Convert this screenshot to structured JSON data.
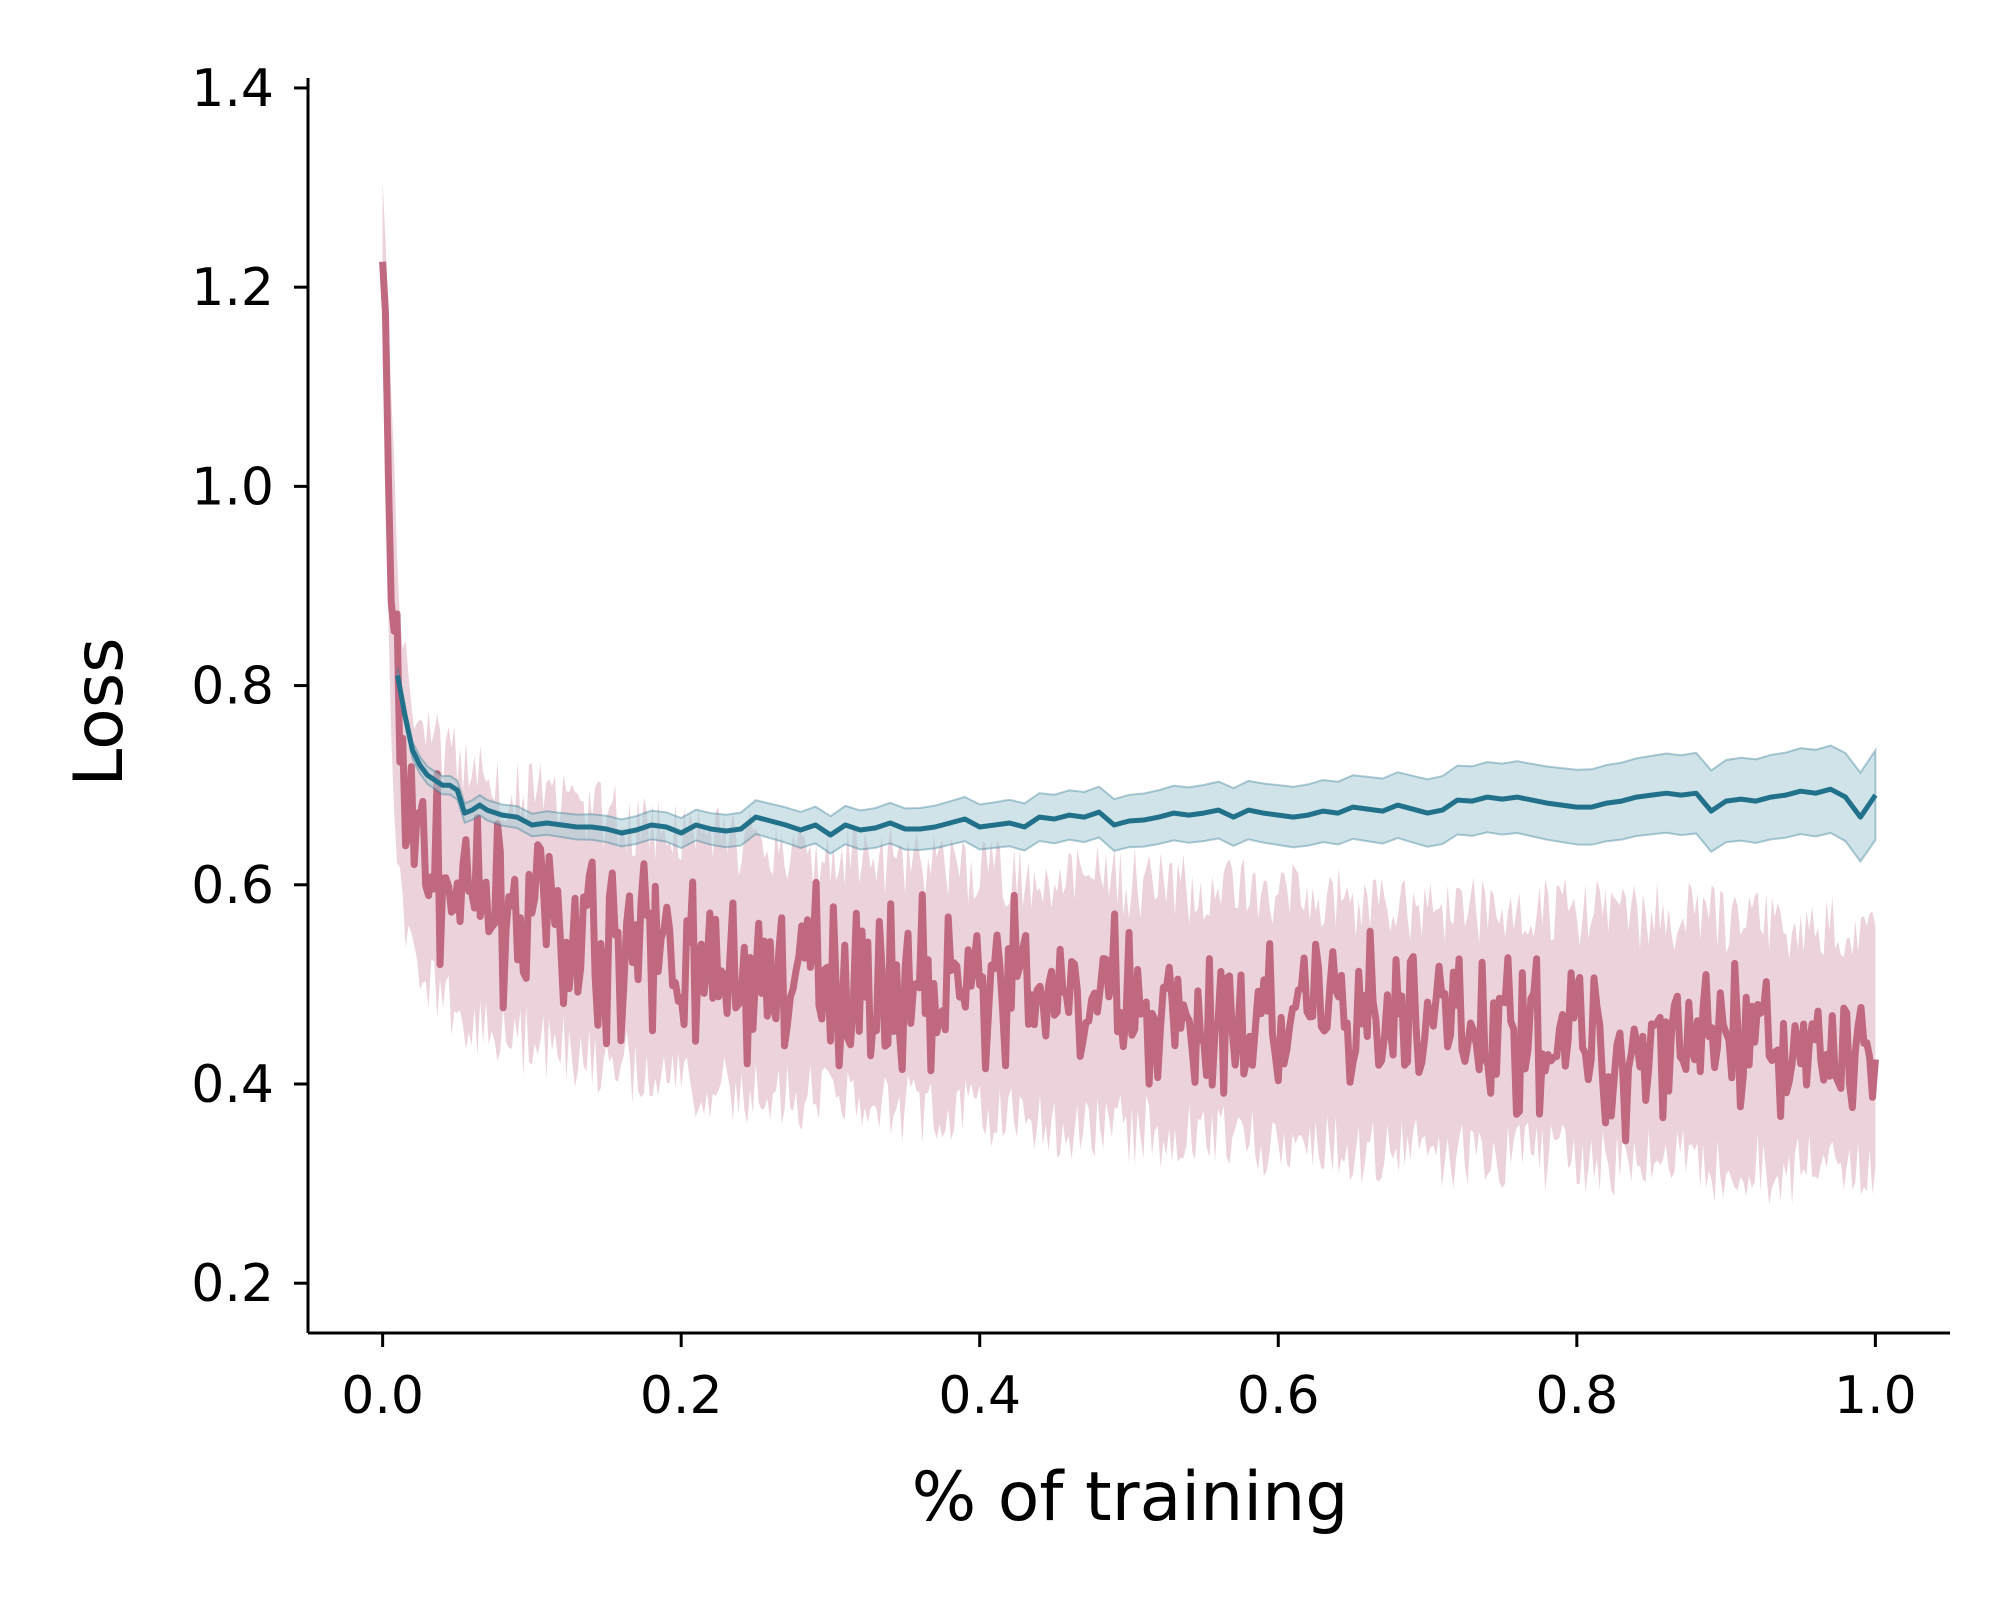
{
  "chart_data": {
    "type": "line",
    "title": "",
    "xlabel": "% of training",
    "ylabel": "Loss",
    "xlim": [
      -0.05,
      1.05
    ],
    "ylim": [
      0.15,
      1.41
    ],
    "x_ticks": [
      0.0,
      0.2,
      0.4,
      0.6,
      0.8,
      1.0
    ],
    "x_tick_labels": [
      "0.0",
      "0.2",
      "0.4",
      "0.6",
      "0.8",
      "1.0"
    ],
    "y_ticks": [
      0.2,
      0.4,
      0.6,
      0.8,
      1.0,
      1.2,
      1.4
    ],
    "y_tick_labels": [
      "0.2",
      "0.4",
      "0.6",
      "0.8",
      "1.0",
      "1.2",
      "1.4"
    ],
    "grid": false,
    "legend": "none",
    "colors": {
      "train": "#c0687f",
      "train_band": "#ecd3db",
      "val": "#22718a",
      "val_band": "#a8ccd6"
    },
    "series": [
      {
        "role": "train",
        "style": "noisy line with shaded min-max band",
        "x": [
          0.0,
          0.005,
          0.01,
          0.015,
          0.02,
          0.03,
          0.04,
          0.05,
          0.06,
          0.08,
          0.1,
          0.15,
          0.2,
          0.25,
          0.3,
          0.35,
          0.4,
          0.45,
          0.5,
          0.55,
          0.6,
          0.65,
          0.7,
          0.75,
          0.8,
          0.85,
          0.9,
          0.95,
          1.0
        ],
        "mean": [
          1.24,
          0.95,
          0.76,
          0.7,
          0.66,
          0.63,
          0.61,
          0.6,
          0.59,
          0.575,
          0.565,
          0.545,
          0.53,
          0.515,
          0.505,
          0.5,
          0.49,
          0.485,
          0.478,
          0.47,
          0.465,
          0.46,
          0.455,
          0.452,
          0.448,
          0.445,
          0.44,
          0.437,
          0.435
        ],
        "spread": [
          0.05,
          0.12,
          0.1,
          0.09,
          0.08,
          0.075,
          0.075,
          0.075,
          0.075,
          0.075,
          0.075,
          0.075,
          0.075,
          0.075,
          0.075,
          0.075,
          0.075,
          0.075,
          0.075,
          0.075,
          0.075,
          0.075,
          0.075,
          0.075,
          0.075,
          0.075,
          0.075,
          0.075,
          0.075
        ],
        "band_spread": [
          0.12,
          0.2,
          0.18,
          0.17,
          0.16,
          0.16,
          0.16,
          0.16,
          0.16,
          0.16,
          0.16,
          0.16,
          0.16,
          0.16,
          0.16,
          0.16,
          0.16,
          0.16,
          0.16,
          0.16,
          0.16,
          0.16,
          0.16,
          0.16,
          0.16,
          0.16,
          0.16,
          0.16,
          0.16
        ]
      },
      {
        "role": "validation",
        "style": "line with shaded confidence band",
        "x": [
          0.01,
          0.015,
          0.02,
          0.025,
          0.03,
          0.035,
          0.04,
          0.045,
          0.05,
          0.055,
          0.06,
          0.065,
          0.07,
          0.08,
          0.09,
          0.1,
          0.11,
          0.12,
          0.13,
          0.14,
          0.15,
          0.16,
          0.17,
          0.18,
          0.19,
          0.2,
          0.21,
          0.22,
          0.23,
          0.24,
          0.25,
          0.26,
          0.27,
          0.28,
          0.29,
          0.3,
          0.31,
          0.32,
          0.33,
          0.34,
          0.35,
          0.36,
          0.37,
          0.38,
          0.39,
          0.4,
          0.41,
          0.42,
          0.43,
          0.44,
          0.45,
          0.46,
          0.47,
          0.48,
          0.49,
          0.5,
          0.51,
          0.52,
          0.53,
          0.54,
          0.55,
          0.56,
          0.57,
          0.58,
          0.59,
          0.6,
          0.61,
          0.62,
          0.63,
          0.64,
          0.65,
          0.66,
          0.67,
          0.68,
          0.69,
          0.7,
          0.71,
          0.72,
          0.73,
          0.74,
          0.75,
          0.76,
          0.77,
          0.78,
          0.79,
          0.8,
          0.81,
          0.82,
          0.83,
          0.84,
          0.85,
          0.86,
          0.87,
          0.88,
          0.89,
          0.9,
          0.91,
          0.92,
          0.93,
          0.94,
          0.95,
          0.96,
          0.97,
          0.98,
          0.99,
          1.0
        ],
        "values": [
          0.81,
          0.77,
          0.735,
          0.72,
          0.71,
          0.705,
          0.7,
          0.7,
          0.695,
          0.672,
          0.675,
          0.68,
          0.675,
          0.67,
          0.668,
          0.66,
          0.662,
          0.66,
          0.658,
          0.658,
          0.656,
          0.652,
          0.655,
          0.66,
          0.658,
          0.652,
          0.66,
          0.656,
          0.654,
          0.656,
          0.668,
          0.664,
          0.66,
          0.655,
          0.66,
          0.65,
          0.66,
          0.655,
          0.657,
          0.662,
          0.656,
          0.656,
          0.658,
          0.662,
          0.666,
          0.658,
          0.66,
          0.662,
          0.658,
          0.668,
          0.666,
          0.67,
          0.668,
          0.673,
          0.66,
          0.664,
          0.665,
          0.668,
          0.672,
          0.67,
          0.672,
          0.675,
          0.668,
          0.675,
          0.672,
          0.67,
          0.668,
          0.67,
          0.674,
          0.672,
          0.678,
          0.676,
          0.674,
          0.68,
          0.676,
          0.672,
          0.675,
          0.685,
          0.684,
          0.688,
          0.686,
          0.688,
          0.685,
          0.682,
          0.68,
          0.678,
          0.678,
          0.682,
          0.684,
          0.688,
          0.69,
          0.692,
          0.69,
          0.692,
          0.674,
          0.684,
          0.686,
          0.684,
          0.688,
          0.69,
          0.694,
          0.692,
          0.696,
          0.688,
          0.668,
          0.69
        ],
        "band_halfwidth_start": 0.008,
        "band_halfwidth_end": 0.045
      }
    ]
  }
}
